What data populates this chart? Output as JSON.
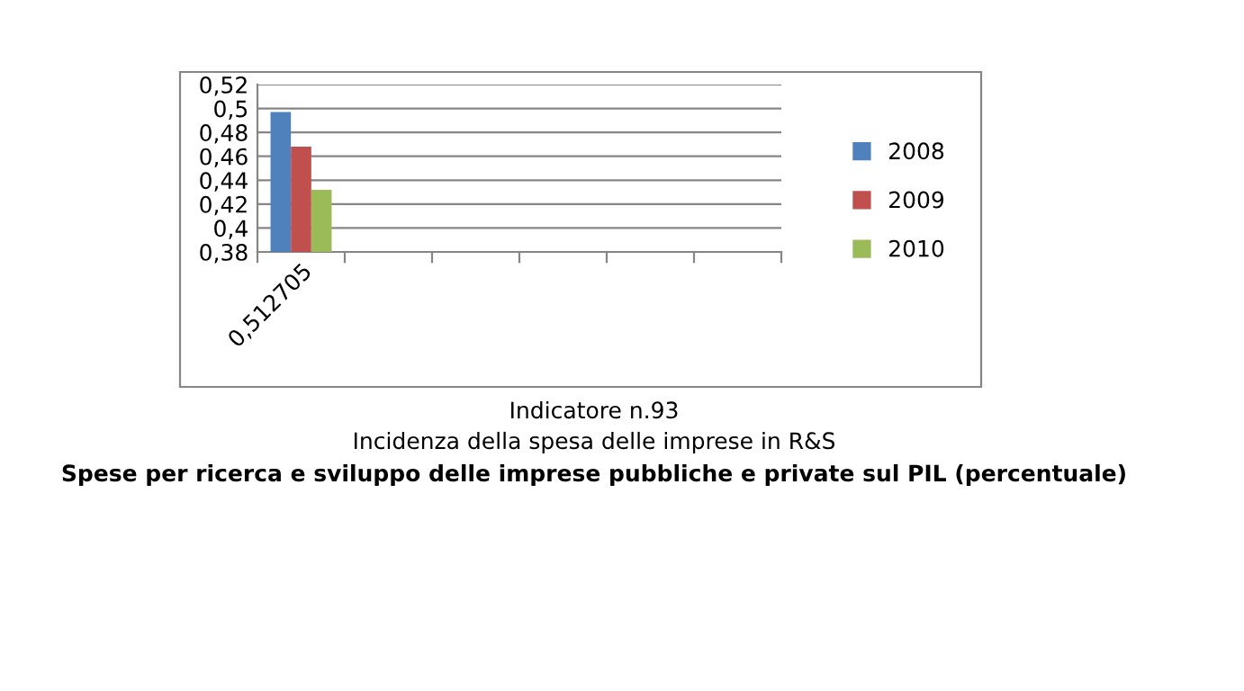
{
  "chart_data": {
    "type": "bar",
    "title": "Indicatore n.93",
    "subtitle": "Incidenza della spesa delle imprese in R&S",
    "annotations": [
      "Spese per ricerca e sviluppo delle imprese pubbliche e private sul PIL (percentuale)"
    ],
    "categories": [
      "0,512705",
      null,
      null,
      null,
      null,
      null
    ],
    "series": [
      {
        "name": "2008",
        "color": "#4f81bd",
        "values": [
          0.497,
          null,
          null,
          null,
          null,
          null
        ]
      },
      {
        "name": "2009",
        "color": "#c0504d",
        "values": [
          0.468,
          null,
          null,
          null,
          null,
          null
        ]
      },
      {
        "name": "2010",
        "color": "#9bbb59",
        "values": [
          0.432,
          null,
          null,
          null,
          null,
          null
        ]
      }
    ],
    "ylim": [
      0.38,
      0.52
    ],
    "yticks": [
      {
        "value": 0.38,
        "label": "0,38"
      },
      {
        "value": 0.4,
        "label": "0,4"
      },
      {
        "value": 0.42,
        "label": "0,42"
      },
      {
        "value": 0.44,
        "label": "0,44"
      },
      {
        "value": 0.46,
        "label": "0,46"
      },
      {
        "value": 0.48,
        "label": "0,48"
      },
      {
        "value": 0.5,
        "label": "0,5"
      },
      {
        "value": 0.52,
        "label": "0,52"
      }
    ],
    "grid": "y",
    "legend": "right"
  }
}
